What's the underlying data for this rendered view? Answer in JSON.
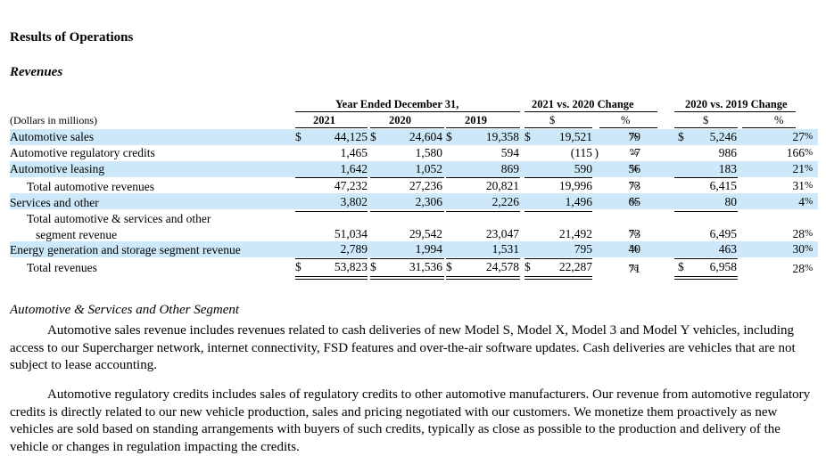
{
  "heading": "Results of Operations",
  "subheading": "Revenues",
  "table": {
    "group_headers": [
      "Year Ended December 31,",
      "2021 vs. 2020 Change",
      "2020 vs. 2019 Change"
    ],
    "units_label": "(Dollars in millions)",
    "col_headers": [
      "2021",
      "2020",
      "2019",
      "$",
      "%",
      "$",
      "%"
    ],
    "dollar_sign": "$",
    "rows": [
      {
        "label": "Automotive sales",
        "y2021": "44,125",
        "y2020": "24,604",
        "y2019": "19,358",
        "c1d": "19,521",
        "c1p": "79",
        "c2d": "5,246",
        "c2p": "27"
      },
      {
        "label": "Automotive regulatory credits",
        "y2021": "1,465",
        "y2020": "1,580",
        "y2019": "594",
        "c1d": "(115",
        "c1p": "-7",
        "c2d": "986",
        "c2p": "166"
      },
      {
        "label": "Automotive leasing",
        "y2021": "1,642",
        "y2020": "1,052",
        "y2019": "869",
        "c1d": "590",
        "c1p": "56",
        "c2d": "183",
        "c2p": "21"
      },
      {
        "label": "Total automotive revenues",
        "y2021": "47,232",
        "y2020": "27,236",
        "y2019": "20,821",
        "c1d": "19,996",
        "c1p": "73",
        "c2d": "6,415",
        "c2p": "31"
      },
      {
        "label": "Services and other",
        "y2021": "3,802",
        "y2020": "2,306",
        "y2019": "2,226",
        "c1d": "1,496",
        "c1p": "65",
        "c2d": "80",
        "c2p": "4"
      },
      {
        "label": "Total automotive & services and other",
        "label2": "segment revenue",
        "y2021": "51,034",
        "y2020": "29,542",
        "y2019": "23,047",
        "c1d": "21,492",
        "c1p": "73",
        "c2d": "6,495",
        "c2p": "28"
      },
      {
        "label": "Energy generation and storage segment revenue",
        "y2021": "2,789",
        "y2020": "1,994",
        "y2019": "1,531",
        "c1d": "795",
        "c1p": "40",
        "c2d": "463",
        "c2p": "30"
      },
      {
        "label": "Total revenues",
        "y2021": "53,823",
        "y2020": "31,536",
        "y2019": "24,578",
        "c1d": "22,287",
        "c1p": "71",
        "c2d": "6,958",
        "c2p": "28"
      }
    ],
    "pct_sign": "%",
    "close_paren": ")"
  },
  "segment_title": "Automotive & Services and Other Segment",
  "paragraphs": [
    "Automotive sales revenue includes revenues related to cash deliveries of new Model S, Model X, Model 3 and Model Y vehicles, including access to our Supercharger network, internet connectivity, FSD features and over-the-air software updates. Cash deliveries are vehicles that are not subject to lease accounting.",
    "Automotive regulatory credits includes sales of regulatory credits to other automotive manufacturers. Our revenue from automotive regulatory credits is directly related to our new vehicle production, sales and pricing negotiated with our customers. We monetize them proactively as new vehicles are sold based on standing arrangements with buyers of such credits, typically as close as possible to the production and delivery of the vehicle or changes in regulation impacting the credits."
  ]
}
